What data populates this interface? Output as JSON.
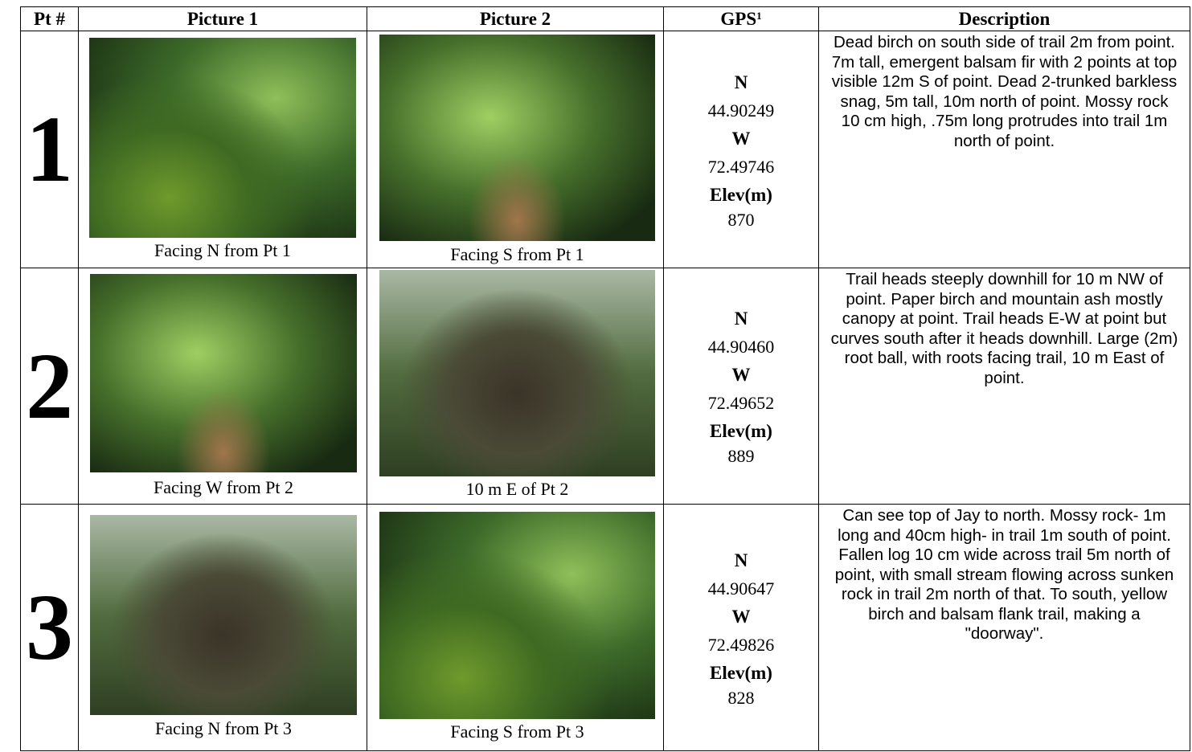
{
  "table": {
    "header": {
      "point": "Pt #",
      "picture1": "Picture 1",
      "picture2": "Picture 2",
      "gps": "GPS",
      "gps_note": "1",
      "description": "Description"
    },
    "rows": [
      {
        "point": 1,
        "caption1": "Facing N from Pt 1",
        "caption2": "Facing S from Pt 1",
        "lat_label": "N",
        "lat": "44.90249",
        "lon_label": "W",
        "lon": "72.49746",
        "elev_label": "Elev(m)",
        "elev": 870,
        "description": "Dead birch on south side of trail 2m from point.  7m tall, emergent balsam fir with 2 points at top visible 12m S of point.  Dead 2-trunked barkless snag, 5m tall, 10m north of point.  Mossy rock 10 cm high, .75m long protrudes into trail 1m north of point."
      },
      {
        "point": 2,
        "caption1": "Facing W from Pt 2",
        "caption2": "10 m E of Pt 2",
        "lat_label": "N",
        "lat": "44.90460",
        "lon_label": "W",
        "lon": "72.49652",
        "elev_label": "Elev(m)",
        "elev": 889,
        "description": "Trail heads steeply downhill for 10 m NW of point.  Paper birch and mountain ash mostly canopy at point.  Trail heads E-W at point but curves south after it heads downhill.  Large (2m) root ball, with roots facing trail, 10 m East of point."
      },
      {
        "point": 3,
        "caption1": "Facing N from Pt 3",
        "caption2": "Facing S from Pt 3",
        "lat_label": "N",
        "lat": "44.90647",
        "lon_label": "W",
        "lon": "72.49826",
        "elev_label": "Elev(m)",
        "elev": 828,
        "description": "Can see top of Jay to north.  Mossy rock- 1m long and 40cm high- in trail 1m south of point.  Fallen log 10 cm wide across trail 5m north of point, with small stream flowing across sunken rock in trail 2m north of that.  To south, yellow birch and balsam flank trail, making a \"doorway\"."
      }
    ]
  }
}
